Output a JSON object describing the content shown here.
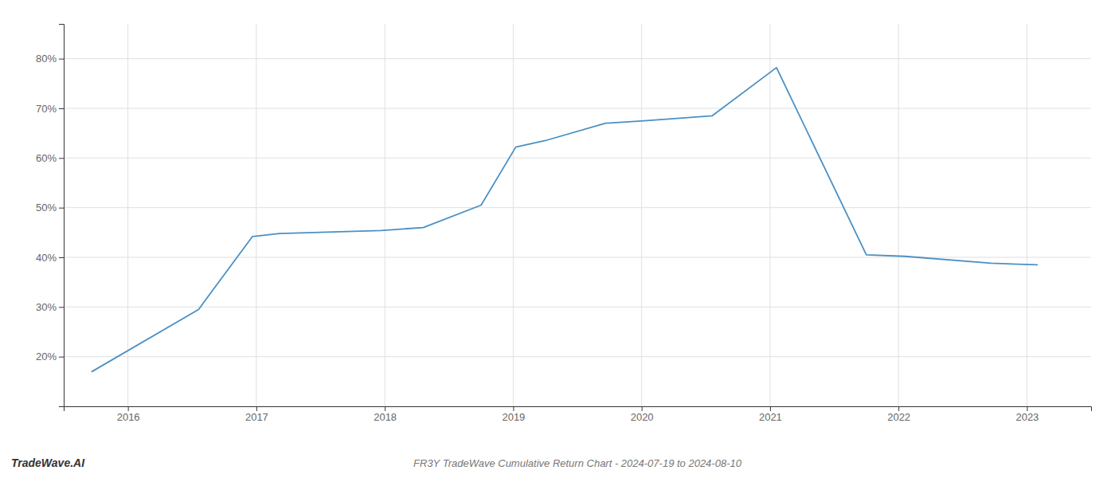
{
  "chart_data": {
    "type": "line",
    "title": "FR3Y TradeWave Cumulative Return Chart - 2024-07-19 to 2024-08-10",
    "annotations": [
      "TradeWave.AI"
    ],
    "x": [
      2015.72,
      2016.55,
      2016.97,
      2017.18,
      2017.97,
      2018.3,
      2018.75,
      2019.02,
      2019.25,
      2019.72,
      2020.02,
      2020.55,
      2021.05,
      2021.75,
      2022.05,
      2022.72,
      2023.08
    ],
    "values": [
      17.0,
      29.5,
      44.2,
      44.8,
      45.4,
      46.0,
      50.5,
      62.2,
      63.5,
      67.0,
      67.5,
      68.5,
      78.2,
      40.5,
      40.2,
      38.8,
      38.5
    ],
    "color": "#4a90c4",
    "xlim": [
      2015.5,
      2023.5
    ],
    "ylim": [
      10,
      87
    ],
    "xticks": [
      2016,
      2017,
      2018,
      2019,
      2020,
      2021,
      2022,
      2023
    ],
    "yticks": [
      {
        "value": 20,
        "label": "20%"
      },
      {
        "value": 30,
        "label": "30%"
      },
      {
        "value": 40,
        "label": "40%"
      },
      {
        "value": 50,
        "label": "50%"
      },
      {
        "value": 60,
        "label": "60%"
      },
      {
        "value": 70,
        "label": "70%"
      },
      {
        "value": 80,
        "label": "80%"
      }
    ],
    "grid": true
  }
}
